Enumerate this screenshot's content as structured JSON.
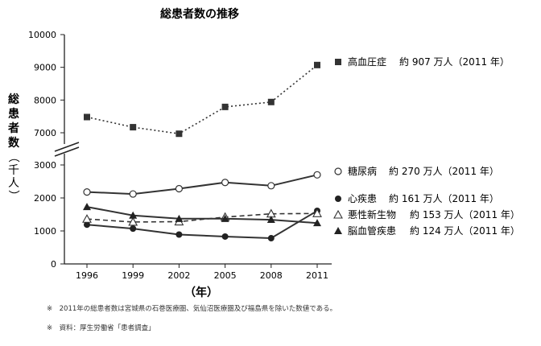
{
  "chart_data": {
    "type": "line",
    "title": "総患者数の推移",
    "xlabel": "（年）",
    "ylabel": "総患者数（千人）",
    "x": [
      1996,
      1999,
      2002,
      2005,
      2008,
      2011
    ],
    "y_ticks": [
      0,
      1000,
      2000,
      3000,
      7000,
      8000,
      9000,
      10000
    ],
    "y_axis_break": [
      3000,
      7000
    ],
    "grid": false,
    "legend_position": "right",
    "series": [
      {
        "name": "高血圧症",
        "annotation": "約 907 万人（2011 年）",
        "marker": "■",
        "line": "dotted",
        "values": [
          7480,
          7170,
          6970,
          7790,
          7940,
          9070
        ]
      },
      {
        "name": "糖尿病",
        "annotation": "約 270 万人（2011 年）",
        "marker": "○",
        "line": "solid",
        "values": [
          2180,
          2120,
          2280,
          2470,
          2370,
          2700
        ]
      },
      {
        "name": "心疾患",
        "annotation": "約 161 万人（2011 年）",
        "marker": "●",
        "line": "solid",
        "values": [
          1190,
          1070,
          890,
          830,
          780,
          1610
        ]
      },
      {
        "name": "悪性新生物",
        "annotation": "約 153 万人（2011 年）",
        "marker": "△",
        "line": "dashed",
        "values": [
          1360,
          1270,
          1280,
          1420,
          1520,
          1530
        ]
      },
      {
        "name": "脳血管疾患",
        "annotation": "約 124 万人（2011 年）",
        "marker": "▲",
        "line": "solid",
        "values": [
          1730,
          1470,
          1370,
          1370,
          1340,
          1240
        ]
      }
    ]
  },
  "notes": [
    "※　2011年の総患者数は宮城県の石巻医療圏、気仙沼医療圏及び福島県を除いた数値である。",
    "※　資料：厚生労働省「患者調査」"
  ]
}
